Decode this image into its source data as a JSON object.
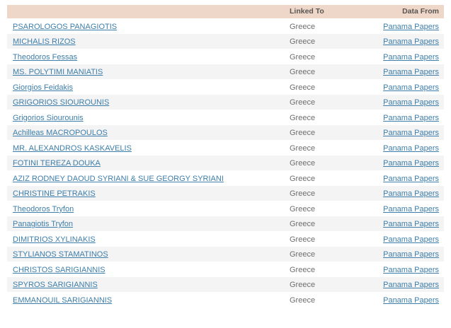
{
  "table": {
    "columns": {
      "name": "",
      "linked_to": "Linked To",
      "data_from": "Data From"
    },
    "rows": [
      {
        "name": "PSAROLOGOS PANAGIOTIS",
        "linked_to": "Greece",
        "data_from": "Panama Papers"
      },
      {
        "name": "MICHALIS RIZOS",
        "linked_to": "Greece",
        "data_from": "Panama Papers"
      },
      {
        "name": "Theodoros Fessas",
        "linked_to": "Greece",
        "data_from": "Panama Papers"
      },
      {
        "name": "MS. POLYTIMI MANIATIS",
        "linked_to": "Greece",
        "data_from": "Panama Papers"
      },
      {
        "name": "Giorgios Feidakis",
        "linked_to": "Greece",
        "data_from": "Panama Papers"
      },
      {
        "name": "GRIGORIOS SIOUROUNIS",
        "linked_to": "Greece",
        "data_from": "Panama Papers"
      },
      {
        "name": "Grigorios Siourounis",
        "linked_to": "Greece",
        "data_from": "Panama Papers"
      },
      {
        "name": "Achilleas MACROPOULOS",
        "linked_to": "Greece",
        "data_from": "Panama Papers"
      },
      {
        "name": "MR. ALEXANDROS KASKAVELIS",
        "linked_to": "Greece",
        "data_from": "Panama Papers"
      },
      {
        "name": "FOTINI TEREZA DOUKA",
        "linked_to": "Greece",
        "data_from": "Panama Papers"
      },
      {
        "name": "AZIZ RODNEY DAOUD SYRIANI & SUE GEORGY SYRIANI",
        "linked_to": "Greece",
        "data_from": "Panama Papers"
      },
      {
        "name": "CHRISTINE PETRAKIS",
        "linked_to": "Greece",
        "data_from": "Panama Papers"
      },
      {
        "name": "Theodoros Tryfon",
        "linked_to": "Greece",
        "data_from": "Panama Papers"
      },
      {
        "name": "Panagiotis Tryfon",
        "linked_to": "Greece",
        "data_from": "Panama Papers"
      },
      {
        "name": "DIMITRIOS XYLINAKIS",
        "linked_to": "Greece",
        "data_from": "Panama Papers"
      },
      {
        "name": "STYLIANOS STAMATINOS",
        "linked_to": "Greece",
        "data_from": "Panama Papers"
      },
      {
        "name": "CHRISTOS SARIGIANNIS",
        "linked_to": "Greece",
        "data_from": "Panama Papers"
      },
      {
        "name": "SPYROS SARIGIANNIS",
        "linked_to": "Greece",
        "data_from": "Panama Papers"
      },
      {
        "name": "EMMANOUIL SARIGIANNIS",
        "linked_to": "Greece",
        "data_from": "Panama Papers"
      }
    ]
  },
  "colors": {
    "header_background": "#eed7c9",
    "header_text": "#595551",
    "link": "#3d7eaa",
    "muted_text": "#6e6e6e",
    "row_stripe": "#f4f4f4",
    "row_plain": "#ffffff"
  }
}
